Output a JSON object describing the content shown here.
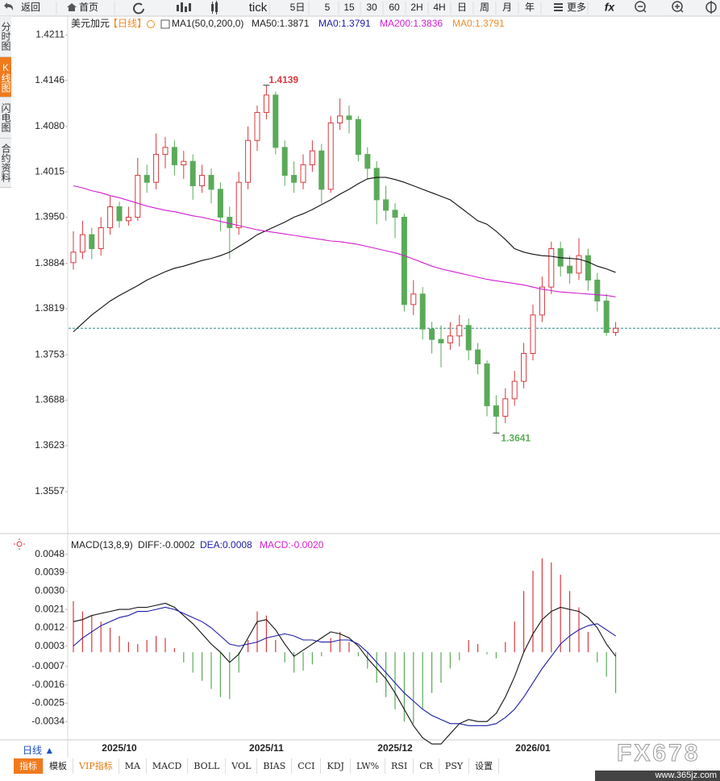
{
  "toolbar": [
    "返回",
    "首页",
    "tick",
    "5日",
    "5",
    "15",
    "30",
    "60",
    "2H",
    "4H",
    "日",
    "周",
    "月",
    "年",
    "更多",
    "fx"
  ],
  "side_tabs": [
    "分时图",
    "K线图",
    "闪电图",
    "合约资料"
  ],
  "chart_data": [
    {
      "type": "candlestick",
      "title": "美元加元",
      "subtitle": "【日线】",
      "legend": [
        {
          "text": "MA1(50,0,200,0)",
          "color": "#222222"
        },
        {
          "text": "MA50:1.3871",
          "color": "#222222"
        },
        {
          "text": "MA0:1.3791",
          "color": "#1c1ca8"
        },
        {
          "text": "MA200:1.3836",
          "color": "#d21ed2"
        },
        {
          "text": "MA0:1.3791",
          "color": "#f08c28"
        }
      ],
      "categories": [
        null,
        null,
        null,
        null,
        null,
        "2025/10",
        null,
        null,
        null,
        null,
        null,
        null,
        null,
        null,
        null,
        null,
        null,
        null,
        null,
        null,
        null,
        "2025/11",
        null,
        null,
        null,
        null,
        null,
        null,
        null,
        null,
        null,
        null,
        null,
        null,
        null,
        "2025/12",
        null,
        null,
        null,
        null,
        null,
        null,
        null,
        null,
        null,
        null,
        null,
        null,
        null,
        null,
        "2026/01",
        null,
        null,
        null,
        null,
        null,
        null,
        null,
        null,
        null
      ],
      "open": [
        1.3885,
        1.39,
        1.3925,
        1.3905,
        1.3935,
        1.3965,
        1.3945,
        1.395,
        1.401,
        1.4,
        1.404,
        1.405,
        1.4025,
        1.403,
        1.3995,
        1.401,
        1.399,
        1.395,
        1.3935,
        1.4,
        1.406,
        1.41,
        1.4125,
        1.405,
        1.401,
        1.4,
        1.4025,
        1.4045,
        1.399,
        1.4085,
        1.4095,
        1.409,
        1.404,
        1.402,
        1.3975,
        1.396,
        1.395,
        1.3825,
        1.384,
        1.379,
        1.3775,
        1.377,
        1.378,
        1.3795,
        1.376,
        1.374,
        1.368,
        1.3665,
        1.369,
        1.3715,
        1.3755,
        1.381,
        1.385,
        1.3905,
        1.388,
        1.387,
        1.3895,
        1.386,
        1.383,
        1.3785
      ],
      "high": [
        1.393,
        1.3945,
        1.3935,
        1.395,
        1.398,
        1.3972,
        1.3965,
        1.4035,
        1.4025,
        1.407,
        1.4065,
        1.406,
        1.4045,
        1.404,
        1.4025,
        1.402,
        1.4,
        1.3965,
        1.4015,
        1.408,
        1.411,
        1.4139,
        1.413,
        1.406,
        1.403,
        1.404,
        1.406,
        1.4055,
        1.4095,
        1.412,
        1.411,
        1.4095,
        1.405,
        1.403,
        1.3995,
        1.397,
        1.3955,
        1.386,
        1.385,
        1.38,
        1.3795,
        1.38,
        1.381,
        1.3805,
        1.377,
        1.3745,
        1.3695,
        1.3705,
        1.373,
        1.377,
        1.3825,
        1.3865,
        1.3915,
        1.3915,
        1.3895,
        1.392,
        1.3905,
        1.387,
        1.384,
        1.38
      ],
      "low": [
        1.3875,
        1.389,
        1.389,
        1.3895,
        1.3925,
        1.3935,
        1.3938,
        1.3945,
        1.3985,
        1.399,
        1.402,
        1.401,
        1.4005,
        1.3975,
        1.3985,
        1.397,
        1.393,
        1.389,
        1.3925,
        1.399,
        1.4045,
        1.409,
        1.404,
        1.3995,
        1.3985,
        1.399,
        1.4015,
        1.397,
        1.3985,
        1.4075,
        1.407,
        1.403,
        1.4005,
        1.394,
        1.3945,
        1.392,
        1.3815,
        1.381,
        1.3775,
        1.3755,
        1.3735,
        1.376,
        1.3765,
        1.3745,
        1.3725,
        1.3665,
        1.3641,
        1.3655,
        1.368,
        1.3705,
        1.3745,
        1.38,
        1.384,
        1.3865,
        1.3855,
        1.386,
        1.3845,
        1.3815,
        1.378,
        1.378
      ],
      "close": [
        1.39,
        1.3925,
        1.3905,
        1.3935,
        1.3965,
        1.3945,
        1.395,
        1.401,
        1.4,
        1.404,
        1.405,
        1.4025,
        1.403,
        1.3995,
        1.401,
        1.399,
        1.395,
        1.3935,
        1.4,
        1.406,
        1.41,
        1.4125,
        1.405,
        1.401,
        1.4,
        1.4025,
        1.4045,
        1.399,
        1.4085,
        1.4095,
        1.409,
        1.404,
        1.402,
        1.3975,
        1.396,
        1.395,
        1.3825,
        1.384,
        1.379,
        1.3775,
        1.377,
        1.378,
        1.3795,
        1.376,
        1.374,
        1.368,
        1.3665,
        1.369,
        1.3715,
        1.3755,
        1.381,
        1.385,
        1.3905,
        1.388,
        1.387,
        1.3895,
        1.386,
        1.383,
        1.3785,
        1.3791
      ],
      "up_color": "#d9393e",
      "down_color": "#5aaa5a",
      "series": [
        {
          "color": "#111111",
          "values": [
            1.3786,
            1.3798,
            1.381,
            1.382,
            1.383,
            1.3838,
            1.3845,
            1.3852,
            1.386,
            1.3866,
            1.3872,
            1.3877,
            1.388,
            1.3884,
            1.3888,
            1.3891,
            1.3895,
            1.39,
            1.3908,
            1.3916,
            1.3925,
            1.3931,
            1.3937,
            1.3943,
            1.395,
            1.3955,
            1.3961,
            1.3968,
            1.3975,
            1.3983,
            1.399,
            1.3998,
            1.4005,
            1.4007,
            1.4007,
            1.4004,
            1.4,
            1.3995,
            1.399,
            1.3985,
            1.398,
            1.3975,
            1.3965,
            1.3955,
            1.3945,
            1.394,
            1.393,
            1.3918,
            1.3905,
            1.39,
            1.3897,
            1.3895,
            1.3894,
            1.3892,
            1.3891,
            1.389,
            1.3886,
            1.388,
            1.3876,
            1.3871
          ]
        },
        {
          "color": "#d21ed2",
          "values": [
            1.3995,
            1.3992,
            1.3988,
            1.3985,
            1.3981,
            1.3978,
            1.3974,
            1.397,
            1.3966,
            1.3963,
            1.396,
            1.3958,
            1.3955,
            1.3952,
            1.395,
            1.3947,
            1.3944,
            1.3941,
            1.3938,
            1.3935,
            1.3932,
            1.393,
            1.3928,
            1.3926,
            1.3924,
            1.3922,
            1.392,
            1.3918,
            1.3916,
            1.3915,
            1.3913,
            1.3911,
            1.3908,
            1.3905,
            1.3902,
            1.3899,
            1.3895,
            1.389,
            1.3885,
            1.388,
            1.3876,
            1.3873,
            1.387,
            1.3867,
            1.3864,
            1.3861,
            1.3859,
            1.3857,
            1.3855,
            1.3853,
            1.385,
            1.3847,
            1.3845,
            1.3843,
            1.3842,
            1.3841,
            1.384,
            1.3839,
            1.3838,
            1.3836
          ]
        }
      ],
      "last_price": 1.3791,
      "ylim": [
        1.3497,
        1.4238
      ],
      "yticks": [
        1.4211,
        1.4146,
        {
          "value": 1.408,
          "label": "1.4080"
        },
        1.4015,
        {
          "value": 1.395,
          "label": "1.3950"
        },
        1.3884,
        1.3819,
        1.3753,
        1.3688,
        1.3623,
        1.3557
      ]
    },
    {
      "type": "macd",
      "title": "MACD(13,8,9)",
      "legend": [
        {
          "text": "DIFF:-0.0002",
          "color": "#222222"
        },
        {
          "text": "DEA:0.0008",
          "color": "#1c1ca8"
        },
        {
          "text": "MACD:-0.0020",
          "color": "#d21ed2"
        }
      ],
      "histogram": [
        0.0025,
        0.002,
        0.0018,
        0.0015,
        0.0012,
        0.0008,
        0.0005,
        0.0004,
        0.0006,
        0.0008,
        0.0007,
        0.0002,
        -0.0005,
        -0.001,
        -0.0014,
        -0.0018,
        -0.0022,
        -0.0023,
        -0.001,
        0.0006,
        0.002,
        0.0018,
        0.0006,
        -0.0005,
        -0.001,
        -0.0009,
        -0.0006,
        -0.0002,
        0.0007,
        0.001,
        0.0005,
        -0.0002,
        -0.0008,
        -0.0015,
        -0.0022,
        -0.0028,
        -0.0034,
        -0.0035,
        -0.0028,
        -0.002,
        -0.0015,
        -0.0008,
        -0.0004,
        0.0006,
        0.0004,
        -0.0001,
        -0.0003,
        0.0005,
        0.0015,
        0.003,
        0.004,
        0.0046,
        0.0044,
        0.0038,
        0.003,
        0.0022,
        0.001,
        -0.0005,
        -0.0012,
        -0.002
      ],
      "up_color": "#d9393e",
      "down_color": "#5aaa5a",
      "series": [
        {
          "color": "#111111",
          "values": [
            0.0015,
            0.0016,
            0.0018,
            0.0019,
            0.002,
            0.0021,
            0.0021,
            0.0022,
            0.0022,
            0.0023,
            0.0024,
            0.0022,
            0.0018,
            0.0014,
            0.0009,
            0.0004,
            0.0,
            -0.0005,
            -0.0001,
            0.0007,
            0.0015,
            0.0016,
            0.0011,
            0.0004,
            -0.0002,
            0.0001,
            0.0004,
            0.0007,
            0.001,
            0.0009,
            0.0007,
            0.0003,
            -0.0003,
            -0.0008,
            -0.0013,
            -0.002,
            -0.0028,
            -0.0036,
            -0.0042,
            -0.0045,
            -0.0045,
            -0.004,
            -0.0035,
            -0.0033,
            -0.0034,
            -0.0034,
            -0.003,
            -0.0022,
            -0.0012,
            0.0,
            0.0009,
            0.0016,
            0.002,
            0.0022,
            0.0021,
            0.002,
            0.0017,
            0.0012,
            0.0004,
            -0.0002
          ]
        },
        {
          "color": "#1c1ca8",
          "values": [
            0.0003,
            0.0007,
            0.001,
            0.0013,
            0.0015,
            0.0017,
            0.0018,
            0.002,
            0.002,
            0.0021,
            0.0022,
            0.0021,
            0.0019,
            0.0017,
            0.0015,
            0.0012,
            0.0008,
            0.0004,
            0.0003,
            0.0004,
            0.0005,
            0.0007,
            0.0008,
            0.0009,
            0.0008,
            0.0006,
            0.0006,
            0.0005,
            0.0005,
            0.0006,
            0.0006,
            0.0004,
            0.0,
            -0.0005,
            -0.001,
            -0.0015,
            -0.002,
            -0.0024,
            -0.0028,
            -0.0031,
            -0.0033,
            -0.0035,
            -0.0035,
            -0.0036,
            -0.0036,
            -0.0036,
            -0.0035,
            -0.0032,
            -0.0028,
            -0.0022,
            -0.0015,
            -0.0008,
            -0.0002,
            0.0004,
            0.0008,
            0.0011,
            0.0013,
            0.0014,
            0.0011,
            0.0008
          ]
        }
      ],
      "ylim": [
        -0.0043,
        0.0057
      ],
      "yticks": [
        0.0048,
        0.0039,
        {
          "value": 0.003,
          "label": "0.0030"
        },
        0.0021,
        0.0012,
        0.0003,
        -0.0007,
        -0.0016,
        -0.0025,
        -0.0034
      ]
    }
  ],
  "bottom": {
    "period": "日线 ▲",
    "tabs": [
      "指标",
      "模板",
      "VIP指标",
      "MA",
      "MACD",
      "BOLL",
      "VOL",
      "BIAS",
      "CCI",
      "KDJ",
      "LW%",
      "RSI",
      "CR",
      "PSY",
      "设置"
    ]
  },
  "watermark": {
    "logo": "FX678",
    "url": "www.365jz.com"
  }
}
